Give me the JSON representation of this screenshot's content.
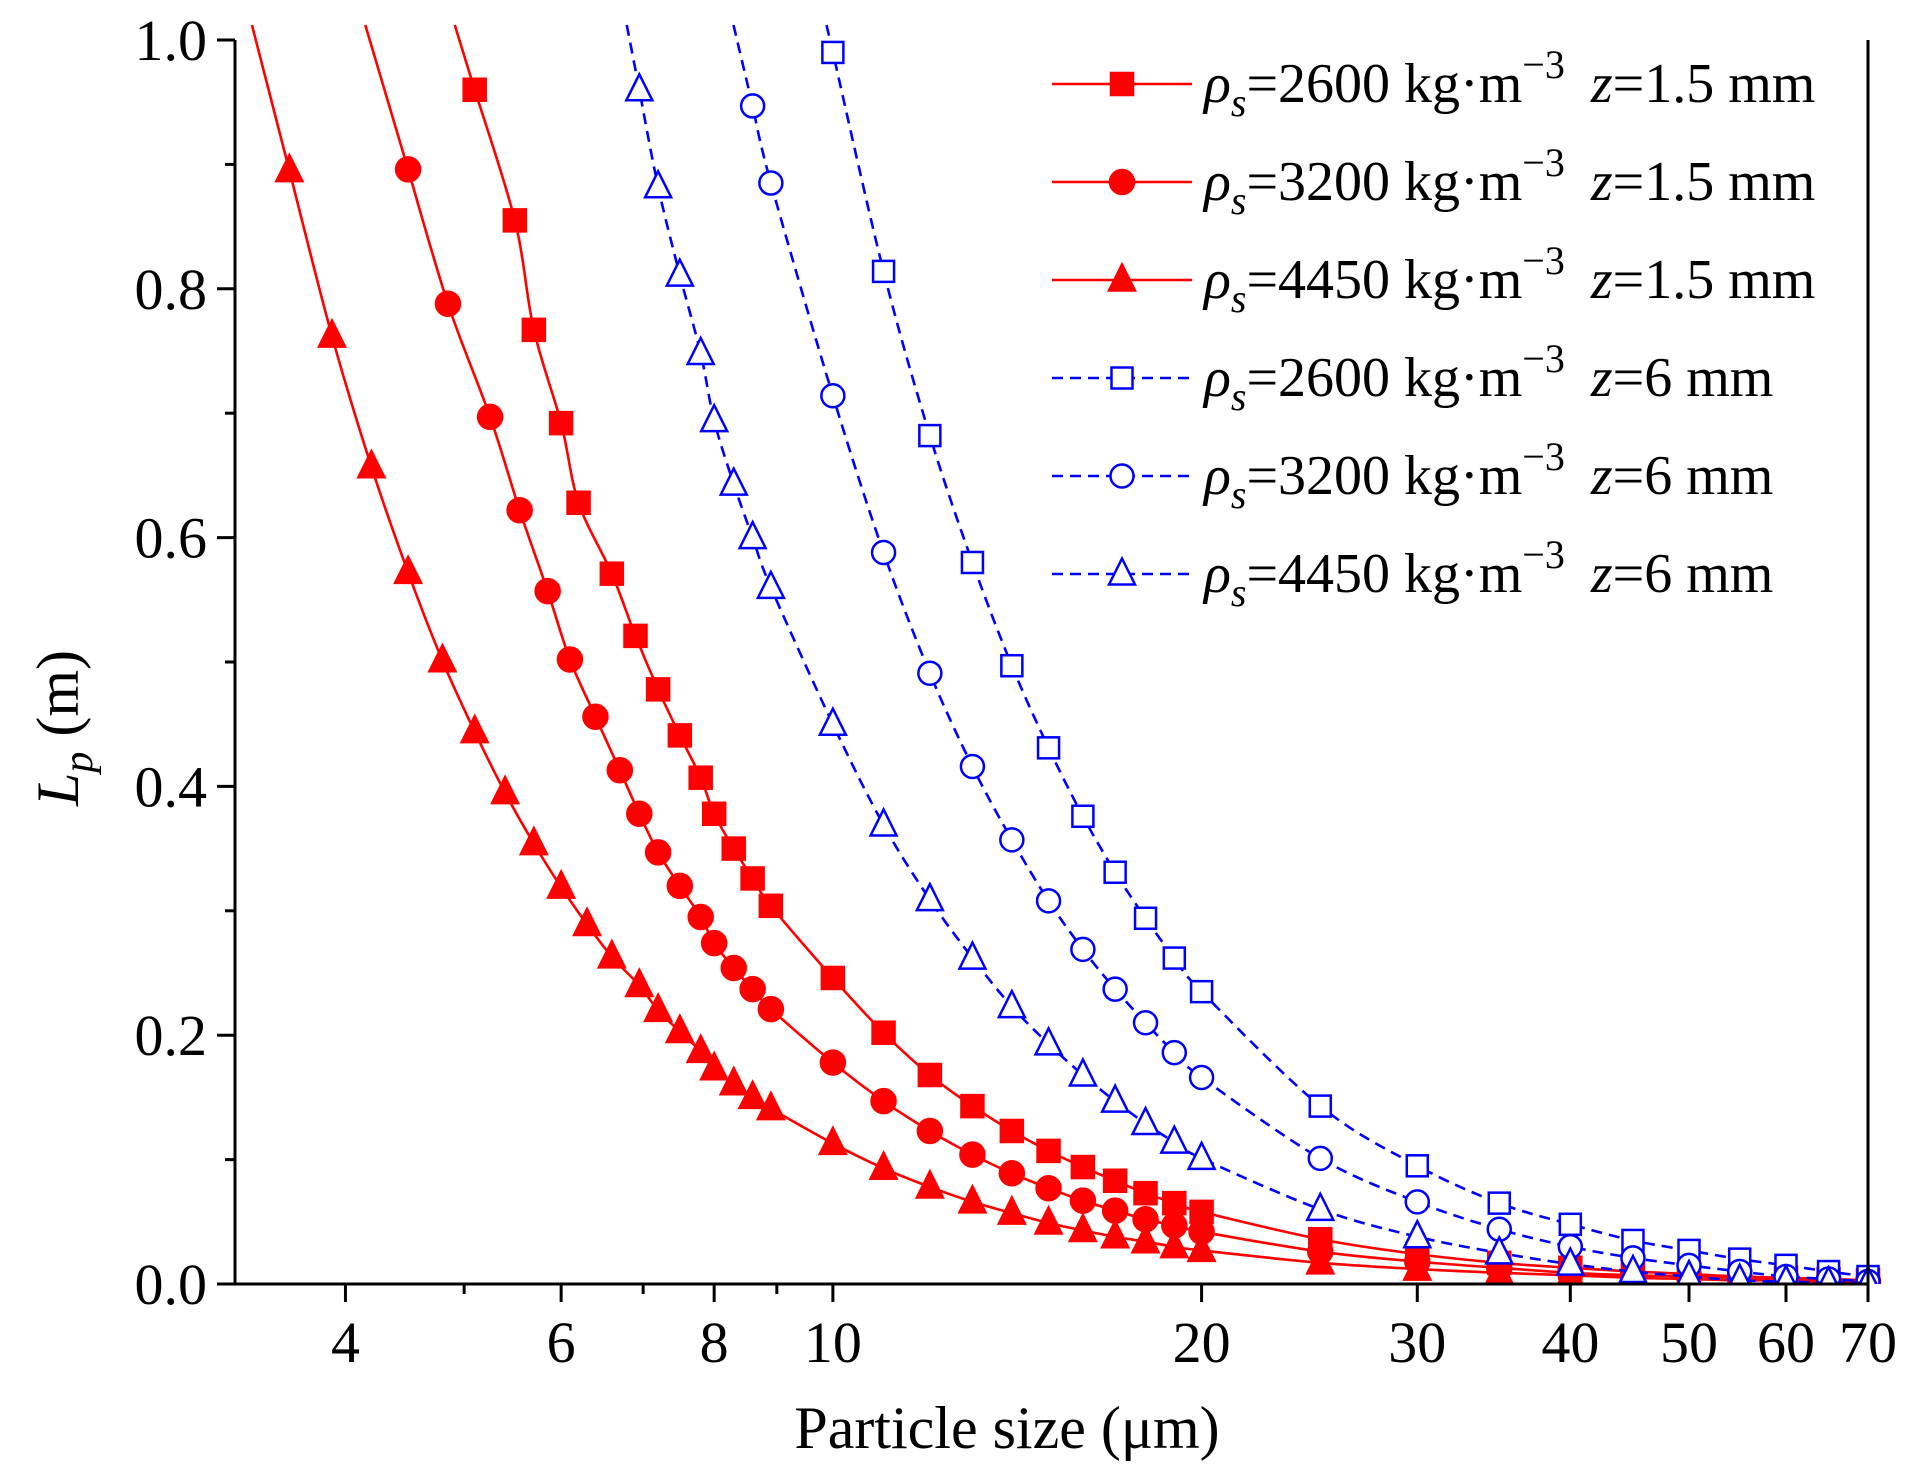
{
  "chart_data": {
    "type": "line",
    "xscale": "log",
    "xlabel": "Particle size (μm)",
    "ylabel": "L_p (m)",
    "ylabel_parts": {
      "symbol": "L",
      "subscript": "p",
      "unit": " (m)"
    },
    "xlim": [
      3.25,
      70
    ],
    "ylim": [
      0.0,
      1.0
    ],
    "x_ticks": [
      4,
      6,
      8,
      10,
      20,
      30,
      40,
      50,
      60,
      70
    ],
    "y_ticks": [
      0.0,
      0.2,
      0.4,
      0.6,
      0.8,
      1.0
    ],
    "y_tick_labels": [
      "0.0",
      "0.2",
      "0.4",
      "0.6",
      "0.8",
      "1.0"
    ],
    "legend_position": "top-right",
    "series": [
      {
        "name": "ρs=2600 kg·m−3 z=1.5 mm",
        "label": {
          "rho": "ρ",
          "sub": "s",
          "value": "=2600 kg·m",
          "exp": "−3",
          "z": "z",
          "zval": "=1.5 mm"
        },
        "color": "#ff0000",
        "line": "solid",
        "marker": "square",
        "filled": true,
        "x": [
          5.1,
          5.5,
          5.7,
          6.0,
          6.2,
          6.6,
          6.9,
          7.2,
          7.5,
          7.8,
          8.0,
          8.3,
          8.6,
          8.9,
          10,
          11,
          12,
          13,
          14,
          15,
          16,
          17,
          18,
          19,
          20,
          25,
          30,
          35,
          40,
          45,
          50,
          55,
          60,
          65,
          70
        ],
        "y": [
          0.96,
          0.855,
          0.767,
          0.692,
          0.628,
          0.571,
          0.521,
          0.478,
          0.441,
          0.407,
          0.378,
          0.35,
          0.326,
          0.304,
          0.246,
          0.202,
          0.168,
          0.143,
          0.123,
          0.107,
          0.094,
          0.083,
          0.073,
          0.065,
          0.058,
          0.036,
          0.024,
          0.017,
          0.013,
          0.01,
          0.008,
          0.006,
          0.005,
          0.004,
          0.003
        ]
      },
      {
        "name": "ρs=3200 kg·m−3 z=1.5 mm",
        "label": {
          "rho": "ρ",
          "sub": "s",
          "value": "=3200 kg·m",
          "exp": "−3",
          "z": "z",
          "zval": "=1.5 mm"
        },
        "color": "#ff0000",
        "line": "solid",
        "marker": "circle",
        "filled": true,
        "x": [
          4.5,
          4.85,
          5.25,
          5.55,
          5.85,
          6.1,
          6.4,
          6.7,
          6.95,
          7.2,
          7.5,
          7.8,
          8.0,
          8.3,
          8.6,
          8.9,
          10,
          11,
          12,
          13,
          14,
          15,
          16,
          17,
          18,
          19,
          20,
          25,
          30,
          35,
          40,
          45,
          50,
          55,
          60,
          65,
          70
        ],
        "y": [
          0.896,
          0.788,
          0.697,
          0.622,
          0.557,
          0.502,
          0.456,
          0.413,
          0.378,
          0.347,
          0.32,
          0.295,
          0.274,
          0.254,
          0.237,
          0.221,
          0.178,
          0.147,
          0.123,
          0.104,
          0.089,
          0.077,
          0.067,
          0.059,
          0.052,
          0.047,
          0.042,
          0.026,
          0.018,
          0.013,
          0.009,
          0.007,
          0.006,
          0.005,
          0.004,
          0.003,
          0.002
        ]
      },
      {
        "name": "ρs=4450 kg·m−3 z=1.5 mm",
        "label": {
          "rho": "ρ",
          "sub": "s",
          "value": "=4450 kg·m",
          "exp": "−3",
          "z": "z",
          "zval": "=1.5 mm"
        },
        "color": "#ff0000",
        "line": "solid",
        "marker": "triangle",
        "filled": true,
        "x": [
          3.6,
          3.9,
          4.2,
          4.5,
          4.8,
          5.1,
          5.4,
          5.7,
          6.0,
          6.3,
          6.6,
          6.95,
          7.2,
          7.5,
          7.8,
          8.0,
          8.3,
          8.6,
          8.9,
          10,
          11,
          12,
          13,
          14,
          15,
          16,
          17,
          18,
          19,
          20,
          25,
          30,
          35,
          40,
          45,
          50,
          55,
          60,
          65,
          70
        ],
        "y": [
          0.895,
          0.762,
          0.657,
          0.572,
          0.501,
          0.444,
          0.395,
          0.354,
          0.319,
          0.289,
          0.263,
          0.24,
          0.22,
          0.203,
          0.187,
          0.173,
          0.161,
          0.15,
          0.141,
          0.113,
          0.093,
          0.078,
          0.066,
          0.057,
          0.049,
          0.043,
          0.038,
          0.034,
          0.03,
          0.027,
          0.017,
          0.012,
          0.009,
          0.007,
          0.005,
          0.004,
          0.003,
          0.003,
          0.002,
          0.002
        ]
      },
      {
        "name": "ρs=2600 kg·m−3 z=6 mm",
        "label": {
          "rho": "ρ",
          "sub": "s",
          "value": "=2600 kg·m",
          "exp": "−3",
          "z": "z",
          "zval": "=6 mm"
        },
        "color": "#0000ff",
        "line": "dashed",
        "marker": "square",
        "filled": false,
        "x": [
          10,
          11,
          12,
          13,
          14,
          15,
          16,
          17,
          18,
          19,
          20,
          25,
          30,
          35,
          40,
          45,
          50,
          55,
          60,
          65,
          70
        ],
        "y": [
          0.99,
          0.814,
          0.682,
          0.58,
          0.497,
          0.431,
          0.376,
          0.331,
          0.294,
          0.262,
          0.235,
          0.143,
          0.095,
          0.065,
          0.048,
          0.035,
          0.027,
          0.02,
          0.015,
          0.01,
          0.006
        ]
      },
      {
        "name": "ρs=3200 kg·m−3 z=6 mm",
        "label": {
          "rho": "ρ",
          "sub": "s",
          "value": "=3200 kg·m",
          "exp": "−3",
          "z": "z",
          "zval": "=6 mm"
        },
        "color": "#0000ff",
        "line": "dashed",
        "marker": "circle",
        "filled": false,
        "x": [
          8.6,
          8.9,
          10,
          11,
          12,
          13,
          14,
          15,
          16,
          17,
          18,
          19,
          20,
          25,
          30,
          35,
          40,
          45,
          50,
          55,
          60,
          65,
          70
        ],
        "y": [
          0.947,
          0.885,
          0.714,
          0.588,
          0.491,
          0.416,
          0.357,
          0.308,
          0.269,
          0.237,
          0.21,
          0.186,
          0.166,
          0.101,
          0.066,
          0.044,
          0.03,
          0.021,
          0.015,
          0.01,
          0.006,
          0.004,
          0.002
        ]
      },
      {
        "name": "ρs=4450 kg·m−3 z=6 mm",
        "label": {
          "rho": "ρ",
          "sub": "s",
          "value": "=4450 kg·m",
          "exp": "−3",
          "z": "z",
          "zval": "=6 mm"
        },
        "color": "#0000ff",
        "line": "dashed",
        "marker": "triangle",
        "filled": false,
        "x": [
          6.95,
          7.2,
          7.5,
          7.8,
          8.0,
          8.3,
          8.6,
          8.9,
          10,
          11,
          12,
          13,
          14,
          15,
          16,
          17,
          18,
          19,
          20,
          25,
          30,
          35,
          40,
          45,
          50,
          55,
          60,
          65,
          70
        ],
        "y": [
          0.96,
          0.882,
          0.811,
          0.748,
          0.694,
          0.643,
          0.6,
          0.56,
          0.45,
          0.369,
          0.309,
          0.262,
          0.223,
          0.193,
          0.168,
          0.147,
          0.129,
          0.114,
          0.101,
          0.06,
          0.038,
          0.025,
          0.016,
          0.01,
          0.006,
          0.003,
          0.002,
          0.001,
          0.001
        ]
      }
    ]
  }
}
